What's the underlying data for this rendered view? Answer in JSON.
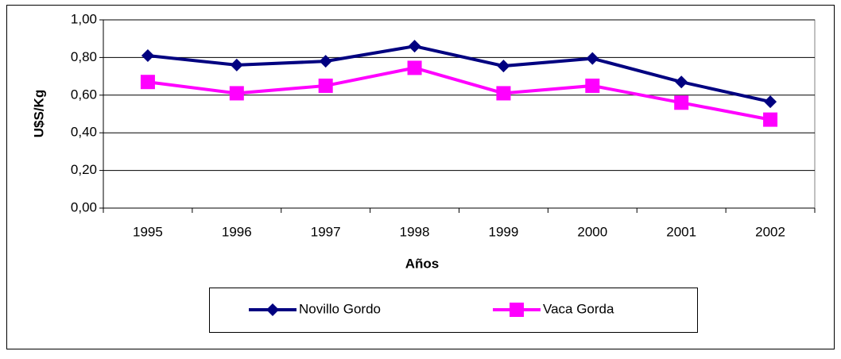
{
  "chart_data": {
    "type": "line",
    "categories": [
      "1995",
      "1996",
      "1997",
      "1998",
      "1999",
      "2000",
      "2001",
      "2002"
    ],
    "series": [
      {
        "name": "Novillo Gordo",
        "color": "#000080",
        "marker": "diamond",
        "values": [
          0.81,
          0.76,
          0.78,
          0.86,
          0.755,
          0.795,
          0.67,
          0.565
        ]
      },
      {
        "name": "Vaca Gorda",
        "color": "#ff00ff",
        "marker": "square",
        "values": [
          0.67,
          0.61,
          0.65,
          0.745,
          0.61,
          0.65,
          0.56,
          0.47
        ]
      }
    ],
    "ylim": [
      0,
      1
    ],
    "yticks": [
      {
        "value": 0,
        "label": "0,00"
      },
      {
        "value": 0.2,
        "label": "0,20"
      },
      {
        "value": 0.4,
        "label": "0,40"
      },
      {
        "value": 0.6,
        "label": "0,60"
      },
      {
        "value": 0.8,
        "label": "0,80"
      },
      {
        "value": 1,
        "label": "1,00"
      }
    ],
    "y_label": "U$S/Kg",
    "x_label": "Años",
    "grid": true,
    "legend": "bottom"
  }
}
